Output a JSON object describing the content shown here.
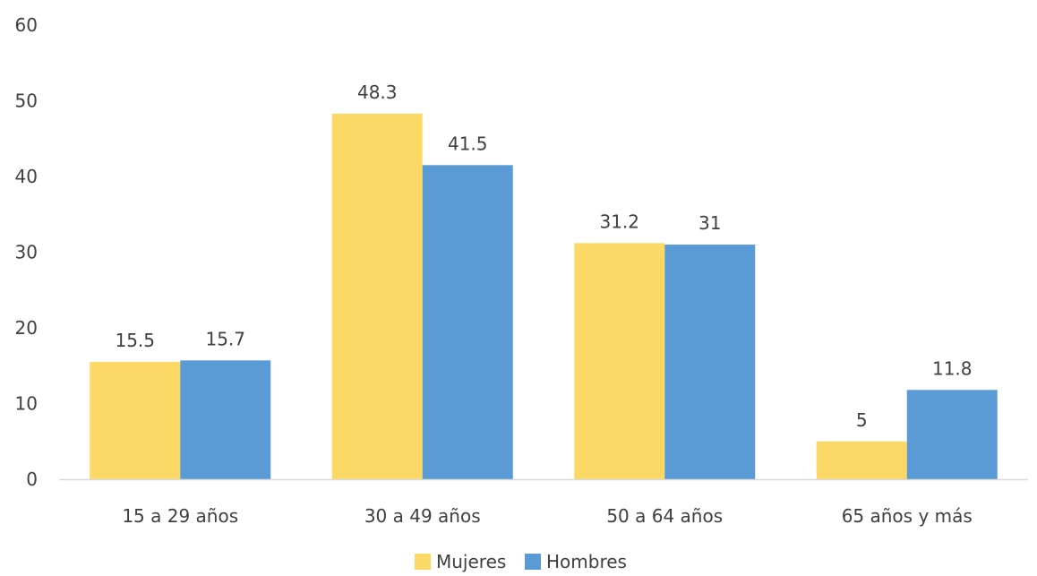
{
  "chart_data": {
    "type": "bar",
    "categories": [
      "15 a 29 años",
      "30 a 49 años",
      "50 a 64 años",
      "65 años y más"
    ],
    "series": [
      {
        "name": "Mujeres",
        "values": [
          15.5,
          48.3,
          31.2,
          5
        ],
        "color": "#FCD966"
      },
      {
        "name": "Hombres",
        "values": [
          15.7,
          41.5,
          31,
          11.8
        ],
        "color": "#5B9BD5"
      }
    ],
    "data_labels": [
      [
        "15.5",
        "48.3",
        "31.2",
        "5"
      ],
      [
        "15.7",
        "41.5",
        "31",
        "11.8"
      ]
    ],
    "y_ticks": [
      "0",
      "10",
      "20",
      "30",
      "40",
      "50",
      "60"
    ],
    "ylim": [
      0,
      60
    ],
    "title": "",
    "xlabel": "",
    "ylabel": "",
    "grid": false,
    "legend_position": "bottom",
    "axis_color": "#D9D9D9",
    "text_color": "#404040"
  }
}
